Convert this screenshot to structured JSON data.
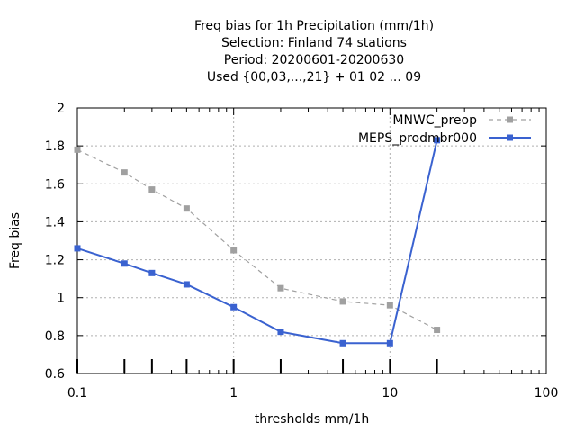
{
  "chart_data": {
    "type": "line",
    "title_lines": [
      "Freq bias  for 1h Precipitation (mm/1h)",
      "Selection: Finland     74 stations",
      "Period: 20200601-20200630",
      "Used {00,03,...,21} + 01 02 ... 09"
    ],
    "xlabel": "thresholds mm/1h",
    "ylabel": "Freq bias",
    "x_scale": "log",
    "xlim": [
      0.1,
      100
    ],
    "ylim": [
      0.6,
      2.0
    ],
    "x_ticks": [
      0.1,
      1,
      10,
      100
    ],
    "x_tick_labels": [
      "0.1",
      "1",
      "10",
      "100"
    ],
    "y_ticks": [
      0.6,
      0.8,
      1.0,
      1.2,
      1.4,
      1.6,
      1.8,
      2.0
    ],
    "y_tick_labels": [
      "0.6",
      "0.8",
      "1",
      "1.2",
      "1.4",
      "1.6",
      "1.8",
      "2"
    ],
    "grid": true,
    "threshold_marks": [
      0.1,
      0.2,
      0.3,
      0.5,
      1,
      2,
      5,
      10,
      20
    ],
    "legend_position": "top-right",
    "series": [
      {
        "name": "MNWC_preop",
        "color": "#a0a0a0",
        "style": "dashed",
        "x": [
          0.1,
          0.2,
          0.3,
          0.5,
          1,
          2,
          5,
          10,
          20
        ],
        "values": [
          1.78,
          1.66,
          1.57,
          1.47,
          1.25,
          1.05,
          0.98,
          0.96,
          0.83
        ]
      },
      {
        "name": "MEPS_prodmbr000",
        "color": "#3a62d0",
        "style": "solid",
        "x": [
          0.1,
          0.2,
          0.3,
          0.5,
          1,
          2,
          5,
          10,
          20
        ],
        "values": [
          1.26,
          1.18,
          1.13,
          1.07,
          0.95,
          0.82,
          0.76,
          0.76,
          1.83
        ]
      }
    ]
  }
}
